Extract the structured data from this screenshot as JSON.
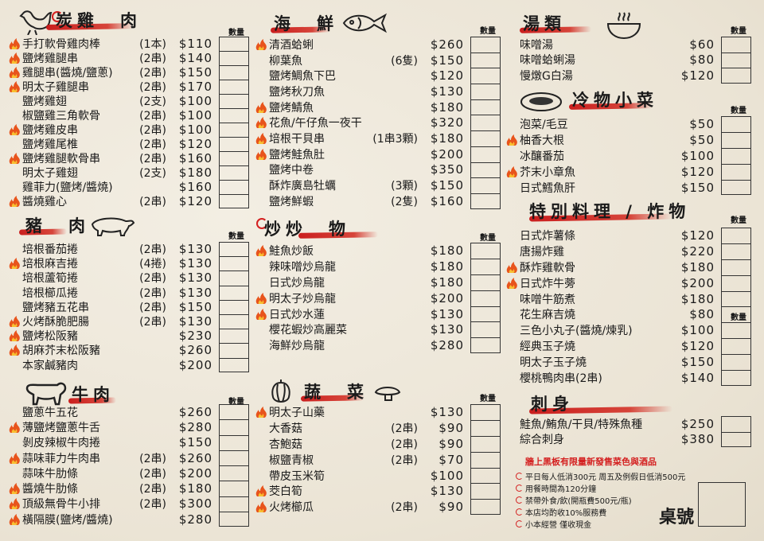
{
  "qty_label": "數量",
  "flame_color": "#e8541c",
  "accent_red": "#d42020",
  "sections": [
    {
      "id": "chicken",
      "title": "炭雞　肉",
      "icon": "chicken-icon",
      "items": [
        {
          "name": "手打軟骨雞肉棒",
          "unit": "(1本)",
          "price": "$110",
          "hot": true
        },
        {
          "name": "鹽烤雞腿串",
          "unit": "(2串)",
          "price": "$140",
          "hot": true
        },
        {
          "name": "雞腿串(醬燒/鹽蔥)",
          "unit": "(2串)",
          "price": "$150",
          "hot": true
        },
        {
          "name": "明太子雞腿串",
          "unit": "(2串)",
          "price": "$170",
          "hot": true
        },
        {
          "name": "鹽烤雞翅",
          "unit": "(2支)",
          "price": "$100",
          "hot": false
        },
        {
          "name": "椒鹽雞三角軟骨",
          "unit": "(2串)",
          "price": "$100",
          "hot": false
        },
        {
          "name": "鹽烤雞皮串",
          "unit": "(2串)",
          "price": "$100",
          "hot": true
        },
        {
          "name": "鹽烤雞尾椎",
          "unit": "(2串)",
          "price": "$120",
          "hot": false
        },
        {
          "name": "鹽烤雞腿軟骨串",
          "unit": "(2串)",
          "price": "$160",
          "hot": true
        },
        {
          "name": "明太子雞翅",
          "unit": "(2支)",
          "price": "$180",
          "hot": false
        },
        {
          "name": "雞菲力(鹽烤/醬燒)",
          "unit": "",
          "price": "$160",
          "hot": false
        },
        {
          "name": "醬燒雞心",
          "unit": "(2串)",
          "price": "$120",
          "hot": true
        }
      ]
    },
    {
      "id": "pork",
      "title": "豬　肉",
      "icon": "pig-icon",
      "items": [
        {
          "name": "培根番茄捲",
          "unit": "(2串)",
          "price": "$130",
          "hot": false
        },
        {
          "name": "培根麻吉捲",
          "unit": "(4捲)",
          "price": "$130",
          "hot": true
        },
        {
          "name": "培根蘆筍捲",
          "unit": "(2串)",
          "price": "$130",
          "hot": false
        },
        {
          "name": "培根櫛瓜捲",
          "unit": "(2串)",
          "price": "$130",
          "hot": false
        },
        {
          "name": "鹽烤豬五花串",
          "unit": "(2串)",
          "price": "$150",
          "hot": false
        },
        {
          "name": "火烤酥脆肥腸",
          "unit": "(2串)",
          "price": "$130",
          "hot": true
        },
        {
          "name": "鹽烤松阪豬",
          "unit": "",
          "price": "$230",
          "hot": true
        },
        {
          "name": "胡麻芥末松阪豬",
          "unit": "",
          "price": "$260",
          "hot": true
        },
        {
          "name": "本家鹹豬肉",
          "unit": "",
          "price": "$200",
          "hot": false
        }
      ]
    },
    {
      "id": "beef",
      "title": "牛肉",
      "icon": "cow-icon",
      "items": [
        {
          "name": "鹽蔥牛五花",
          "unit": "",
          "price": "$260",
          "hot": false
        },
        {
          "name": "薄鹽烤鹽蔥牛舌",
          "unit": "",
          "price": "$280",
          "hot": true
        },
        {
          "name": "剝皮辣椒牛肉捲",
          "unit": "",
          "price": "$150",
          "hot": false
        },
        {
          "name": "蒜味菲力牛肉串",
          "unit": "(2串)",
          "price": "$260",
          "hot": true
        },
        {
          "name": "蒜味牛肋條",
          "unit": "(2串)",
          "price": "$200",
          "hot": false
        },
        {
          "name": "醬燒牛肋條",
          "unit": "(2串)",
          "price": "$180",
          "hot": true
        },
        {
          "name": "頂級無骨牛小排",
          "unit": "(2串)",
          "price": "$300",
          "hot": true
        },
        {
          "name": "橫隔膜(鹽烤/醬燒)",
          "unit": "",
          "price": "$280",
          "hot": true
        }
      ]
    },
    {
      "id": "seafood",
      "title": "海　鮮",
      "icon": "fish-icon",
      "items": [
        {
          "name": "清酒蛤蜊",
          "unit": "",
          "price": "$260",
          "hot": true
        },
        {
          "name": "柳葉魚",
          "unit": "(6隻)",
          "price": "$150",
          "hot": false
        },
        {
          "name": "鹽烤鯛魚下巴",
          "unit": "",
          "price": "$120",
          "hot": false
        },
        {
          "name": "鹽烤秋刀魚",
          "unit": "",
          "price": "$130",
          "hot": false
        },
        {
          "name": "鹽烤鯖魚",
          "unit": "",
          "price": "$180",
          "hot": true
        },
        {
          "name": "花魚/午仔魚一夜干",
          "unit": "",
          "price": "$320",
          "hot": true
        },
        {
          "name": "培根干貝串",
          "unit": "(1串3顆)",
          "price": "$180",
          "hot": true
        },
        {
          "name": "鹽烤鮭魚肚",
          "unit": "",
          "price": "$200",
          "hot": true
        },
        {
          "name": "鹽烤中卷",
          "unit": "",
          "price": "$350",
          "hot": false
        },
        {
          "name": "酥炸廣島牡蠣",
          "unit": "(3顆)",
          "price": "$150",
          "hot": false
        },
        {
          "name": "鹽烤鮮蝦",
          "unit": "(2隻)",
          "price": "$160",
          "hot": false
        }
      ]
    },
    {
      "id": "stirfry",
      "title": "炒炒　物",
      "icon": "",
      "items": [
        {
          "name": "鮭魚炒飯",
          "unit": "",
          "price": "$180",
          "hot": true
        },
        {
          "name": "辣味噌炒烏龍",
          "unit": "",
          "price": "$180",
          "hot": false
        },
        {
          "name": "日式炒烏龍",
          "unit": "",
          "price": "$180",
          "hot": false
        },
        {
          "name": "明太子炒烏龍",
          "unit": "",
          "price": "$200",
          "hot": true
        },
        {
          "name": "日式炒水蓮",
          "unit": "",
          "price": "$130",
          "hot": true
        },
        {
          "name": "櫻花蝦炒高麗菜",
          "unit": "",
          "price": "$130",
          "hot": false
        },
        {
          "name": "海鮮炒烏龍",
          "unit": "",
          "price": "$280",
          "hot": false
        }
      ]
    },
    {
      "id": "veg",
      "title": "蔬　菜",
      "icon": "pepper-icon",
      "items": [
        {
          "name": "明太子山藥",
          "unit": "",
          "price": "$130",
          "hot": true
        },
        {
          "name": "大香菇",
          "unit": "(2串)",
          "price": "$90",
          "hot": false
        },
        {
          "name": "杏鮑菇",
          "unit": "(2串)",
          "price": "$90",
          "hot": false
        },
        {
          "name": "椒鹽青椒",
          "unit": "(2串)",
          "price": "$70",
          "hot": false
        },
        {
          "name": "帶皮玉米筍",
          "unit": "",
          "price": "$100",
          "hot": false
        },
        {
          "name": "茭白筍",
          "unit": "",
          "price": "$130",
          "hot": true
        },
        {
          "name": "火烤櫛瓜",
          "unit": "(2串)",
          "price": "$90",
          "hot": true
        }
      ]
    },
    {
      "id": "soup",
      "title": "湯類",
      "icon": "bowl-icon",
      "items": [
        {
          "name": "味噌湯",
          "unit": "",
          "price": "$60",
          "hot": false
        },
        {
          "name": "味噌蛤蜊湯",
          "unit": "",
          "price": "$80",
          "hot": false
        },
        {
          "name": "慢燉G白湯",
          "unit": "",
          "price": "$120",
          "hot": false
        }
      ]
    },
    {
      "id": "cold",
      "title": "冷物小菜",
      "icon": "plate-icon",
      "items": [
        {
          "name": "泡菜/毛豆",
          "unit": "",
          "price": "$50",
          "hot": false
        },
        {
          "name": "柚香大根",
          "unit": "",
          "price": "$50",
          "hot": true
        },
        {
          "name": "冰釀番茄",
          "unit": "",
          "price": "$100",
          "hot": false
        },
        {
          "name": "芥末小章魚",
          "unit": "",
          "price": "$120",
          "hot": true
        },
        {
          "name": "日式鱈魚肝",
          "unit": "",
          "price": "$150",
          "hot": false
        }
      ]
    },
    {
      "id": "special",
      "title": "特別料理 / 炸物",
      "icon": "",
      "items": [
        {
          "name": "日式炸薯條",
          "unit": "",
          "price": "$120",
          "hot": false
        },
        {
          "name": "唐揚炸雞",
          "unit": "",
          "price": "$220",
          "hot": false
        },
        {
          "name": "酥炸雞軟骨",
          "unit": "",
          "price": "$180",
          "hot": true
        },
        {
          "name": "日式炸牛蒡",
          "unit": "",
          "price": "$200",
          "hot": true
        },
        {
          "name": "味噌牛筋煮",
          "unit": "",
          "price": "$180",
          "hot": false
        },
        {
          "name": "花生麻吉燒",
          "unit": "",
          "price": "$80",
          "hot": false
        },
        {
          "name": "三色小丸子(醬燒/煉乳)",
          "unit": "",
          "price": "$100",
          "hot": false
        },
        {
          "name": "經典玉子燒",
          "unit": "",
          "price": "$120",
          "hot": false
        },
        {
          "name": "明太子玉子燒",
          "unit": "",
          "price": "$150",
          "hot": false
        },
        {
          "name": "櫻桃鴨肉串(2串)",
          "unit": "",
          "price": "$140",
          "hot": false
        }
      ]
    },
    {
      "id": "sashimi",
      "title": "刺身",
      "icon": "",
      "items": [
        {
          "name": "鮭魚/鮪魚/干貝/特殊魚種",
          "unit": "",
          "price": "$250",
          "hot": false
        },
        {
          "name": "綜合刺身",
          "unit": "",
          "price": "$380",
          "hot": false
        }
      ]
    }
  ],
  "notes": {
    "highlight": "牆上黑板有限量新發售菜色與酒品",
    "rules": [
      "平日每人低消300元 周五及例假日低消500元",
      "用餐時間為120分鐘",
      "禁帶外食/飲(開瓶費500元/瓶)",
      "本店均酌收10%服務費",
      "小本經營 僅收現金"
    ]
  },
  "table_number_label": "桌號"
}
